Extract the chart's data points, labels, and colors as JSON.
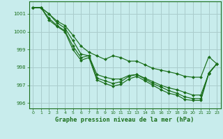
{
  "bg_color": "#c8ecec",
  "grid_color": "#aacccc",
  "line_color": "#1a6e1a",
  "marker_color": "#1a6e1a",
  "xlabel": "Graphe pression niveau de la mer (hPa)",
  "xlim": [
    -0.5,
    23.5
  ],
  "ylim": [
    995.7,
    1001.7
  ],
  "yticks": [
    996,
    997,
    998,
    999,
    1000,
    1001
  ],
  "xticks": [
    0,
    1,
    2,
    3,
    4,
    5,
    6,
    7,
    8,
    9,
    10,
    11,
    12,
    13,
    14,
    15,
    16,
    17,
    18,
    19,
    20,
    21,
    22,
    23
  ],
  "lines": [
    [
      1001.35,
      1001.35,
      1001.0,
      1000.6,
      1000.35,
      999.8,
      999.2,
      998.85,
      998.65,
      998.45,
      998.65,
      998.55,
      998.35,
      998.35,
      998.15,
      997.95,
      997.85,
      997.75,
      997.65,
      997.5,
      997.45,
      997.45,
      998.6,
      998.2
    ],
    [
      1001.35,
      1001.35,
      1001.0,
      1000.5,
      1000.2,
      999.5,
      998.75,
      998.65,
      997.6,
      997.45,
      997.35,
      997.35,
      997.55,
      997.6,
      997.4,
      997.2,
      997.0,
      996.85,
      996.75,
      996.6,
      996.45,
      996.45,
      997.65,
      998.2
    ],
    [
      1001.35,
      1001.35,
      1000.75,
      1000.35,
      1000.05,
      999.2,
      998.55,
      998.65,
      997.4,
      997.25,
      997.1,
      997.2,
      997.5,
      997.6,
      997.35,
      997.1,
      996.9,
      996.7,
      996.55,
      996.35,
      996.25,
      996.25,
      997.7,
      998.2
    ],
    [
      1001.35,
      1001.35,
      1000.65,
      1000.3,
      1000.0,
      999.0,
      998.4,
      998.55,
      997.3,
      997.1,
      996.95,
      997.05,
      997.35,
      997.5,
      997.25,
      997.0,
      996.75,
      996.55,
      996.45,
      996.2,
      996.15,
      996.15,
      997.65,
      998.2
    ]
  ]
}
